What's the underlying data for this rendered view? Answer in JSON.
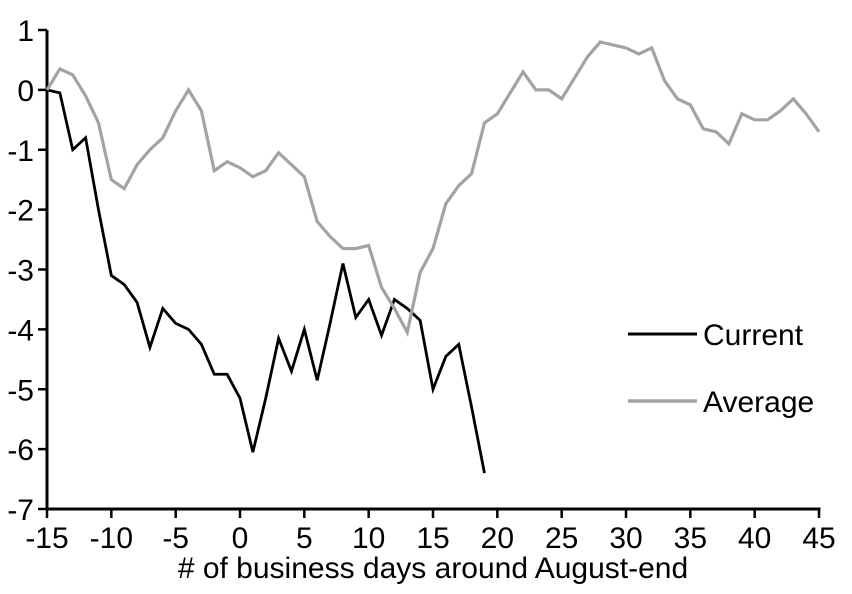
{
  "page": {
    "background_color": "#ffffff",
    "title": ""
  },
  "chart_data": {
    "type": "line",
    "title": "",
    "xlabel": "# of business days around August-end",
    "ylabel": "",
    "xlim": [
      -15,
      45
    ],
    "ylim": [
      -7,
      1
    ],
    "x_ticks": [
      -15,
      -10,
      -5,
      0,
      5,
      10,
      15,
      20,
      25,
      30,
      35,
      40,
      45
    ],
    "y_ticks": [
      1,
      0,
      -1,
      -2,
      -3,
      -4,
      -5,
      -6,
      -7
    ],
    "grid": false,
    "axis_color": "#000000",
    "legend_position": "middle-right",
    "series": [
      {
        "name": "Current",
        "color": "#000000",
        "x": [
          -15,
          -14,
          -13,
          -12,
          -11,
          -10,
          -9,
          -8,
          -7,
          -6,
          -5,
          -4,
          -3,
          -2,
          -1,
          0,
          1,
          2,
          3,
          4,
          5,
          6,
          7,
          8,
          9,
          10,
          11,
          12,
          13,
          14,
          15,
          16,
          17,
          18,
          19
        ],
        "values": [
          0,
          -0.05,
          -1.0,
          -0.8,
          -2.0,
          -3.1,
          -3.25,
          -3.55,
          -4.3,
          -3.65,
          -3.9,
          -4.0,
          -4.25,
          -4.75,
          -4.75,
          -5.15,
          -6.05,
          -5.15,
          -4.15,
          -4.7,
          -4.0,
          -4.85,
          -3.9,
          -2.9,
          -3.8,
          -3.5,
          -4.1,
          -3.5,
          -3.65,
          -3.85,
          -5.0,
          -4.45,
          -4.25,
          -5.3,
          -6.4
        ]
      },
      {
        "name": "Average",
        "color": "#A3A3A3",
        "x": [
          -15,
          -14,
          -13,
          -12,
          -11,
          -10,
          -9,
          -8,
          -7,
          -6,
          -5,
          -4,
          -3,
          -2,
          -1,
          0,
          1,
          2,
          3,
          4,
          5,
          6,
          7,
          8,
          9,
          10,
          11,
          12,
          13,
          14,
          15,
          16,
          17,
          18,
          19,
          20,
          21,
          22,
          23,
          24,
          25,
          26,
          27,
          28,
          29,
          30,
          31,
          32,
          33,
          34,
          35,
          36,
          37,
          38,
          39,
          40,
          41,
          42,
          43,
          44,
          45
        ],
        "values": [
          0,
          0.35,
          0.25,
          -0.1,
          -0.55,
          -1.5,
          -1.65,
          -1.25,
          -1.0,
          -0.8,
          -0.35,
          0.0,
          -0.35,
          -1.35,
          -1.2,
          -1.3,
          -1.45,
          -1.35,
          -1.05,
          -1.25,
          -1.45,
          -2.2,
          -2.45,
          -2.65,
          -2.65,
          -2.6,
          -3.3,
          -3.65,
          -4.05,
          -3.05,
          -2.65,
          -1.9,
          -1.6,
          -1.4,
          -0.55,
          -0.4,
          -0.05,
          0.3,
          0.0,
          0.0,
          -0.15,
          0.2,
          0.55,
          0.8,
          0.75,
          0.7,
          0.6,
          0.7,
          0.15,
          -0.15,
          -0.25,
          -0.65,
          -0.7,
          -0.9,
          -0.4,
          -0.5,
          -0.5,
          -0.35,
          -0.15,
          -0.4,
          -0.7
        ]
      }
    ]
  }
}
